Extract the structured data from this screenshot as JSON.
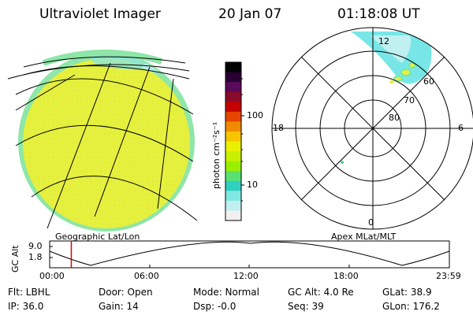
{
  "header": {
    "title": "Ultraviolet Imager",
    "date": "20 Jan 07",
    "time": "01:18:08 UT"
  },
  "colorbar": {
    "unit_label": "photon cm⁻²s⁻¹",
    "ticks": [
      "100",
      "10"
    ],
    "colors": [
      "#000000",
      "#2a0033",
      "#5a0a5a",
      "#8a0a2a",
      "#c40000",
      "#e64500",
      "#f08a00",
      "#f6c400",
      "#eaf000",
      "#c8f000",
      "#98f000",
      "#5ae070",
      "#30d0c0",
      "#80e8e0",
      "#c0f0f0",
      "#f0f0f0"
    ]
  },
  "geo_map": {
    "label": "Geographic Lat/Lon"
  },
  "polar_map": {
    "label": "Apex MLat/MLT",
    "mlt_labels": [
      "12",
      "18",
      "6",
      "0"
    ],
    "lat_labels": [
      "60",
      "70",
      "80"
    ]
  },
  "altitude_plot": {
    "ylabel": "GC Alt",
    "y_ticks": [
      "9.0",
      "1.8"
    ],
    "x_ticks": [
      "00:00",
      "06:00",
      "12:00",
      "18:00",
      "23:59"
    ],
    "current_time_marker_hours": 1.3
  },
  "info": {
    "row1": [
      "Flt: LBHL",
      "Door: Open",
      "Mode: Normal",
      "GC Alt: 4.0 Re",
      "GLat: 38.9"
    ],
    "row2": [
      "IP: 36.0",
      "Gain: 14",
      "Dsp:   -0.0",
      "Seq: 39",
      "GLon: 176.2"
    ]
  },
  "colors": {
    "disk_fill": "#e6f03c",
    "disk_edge": "#7ee0a0",
    "aurora_cyan": "#78e6e6",
    "marker_red": "#e00000"
  }
}
